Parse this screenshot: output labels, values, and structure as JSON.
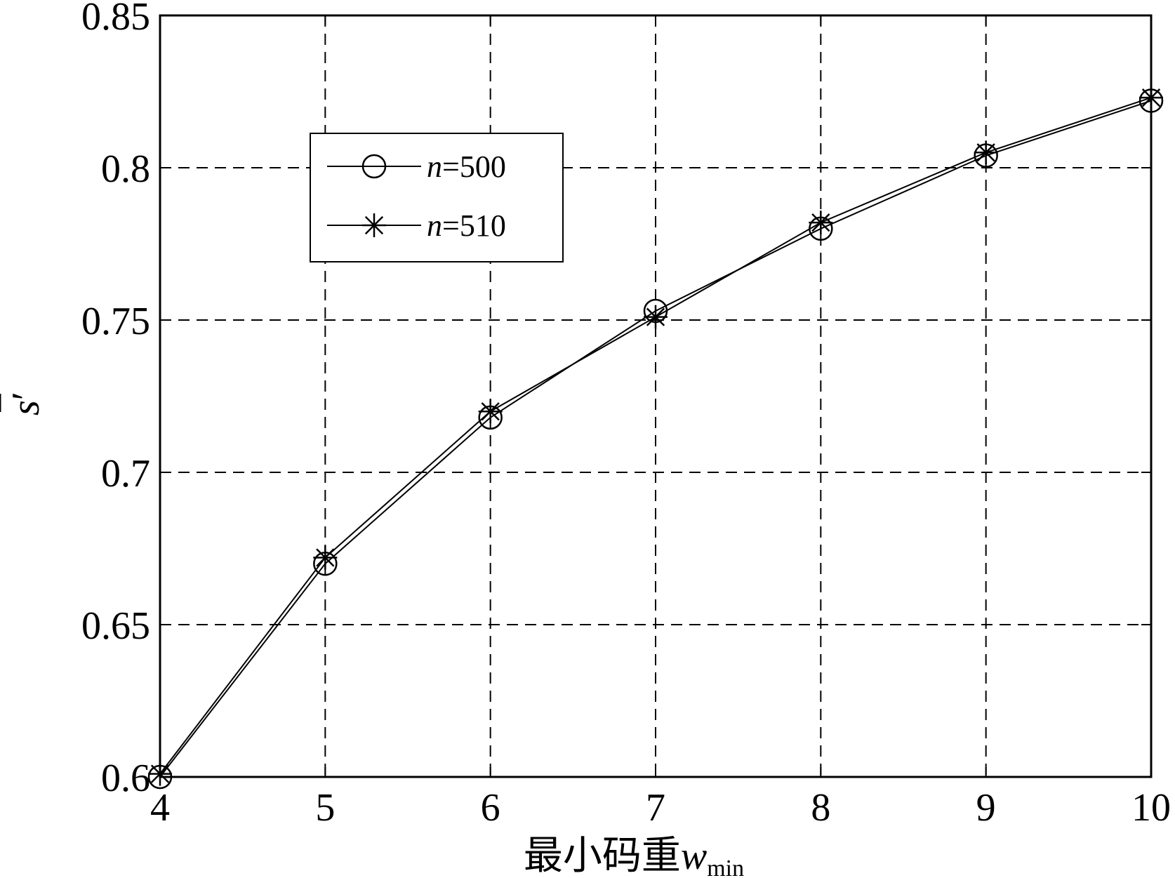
{
  "chart_data": {
    "type": "line",
    "title": "",
    "xlabel": "最小码重",
    "xlabel_var": "w",
    "xlabel_sub": "min",
    "ylabel_var": "s",
    "ylabel_prime": "′",
    "x": [
      4,
      5,
      6,
      7,
      8,
      9,
      10
    ],
    "xlim": [
      4,
      10
    ],
    "ylim": [
      0.6,
      0.85
    ],
    "xticks": [
      "4",
      "5",
      "6",
      "7",
      "8",
      "9",
      "10"
    ],
    "yticks": [
      "0.6",
      "0.65",
      "0.7",
      "0.75",
      "0.8",
      "0.85"
    ],
    "grid": true,
    "legend_position": "top-left",
    "series": [
      {
        "name": "n=500",
        "name_var": "n",
        "name_rest": "=500",
        "marker": "circle",
        "values": [
          0.6,
          0.67,
          0.718,
          0.753,
          0.78,
          0.804,
          0.822
        ]
      },
      {
        "name": "n=510",
        "name_var": "n",
        "name_rest": "=510",
        "marker": "asterisk",
        "values": [
          0.601,
          0.672,
          0.72,
          0.751,
          0.782,
          0.805,
          0.823
        ]
      }
    ]
  }
}
